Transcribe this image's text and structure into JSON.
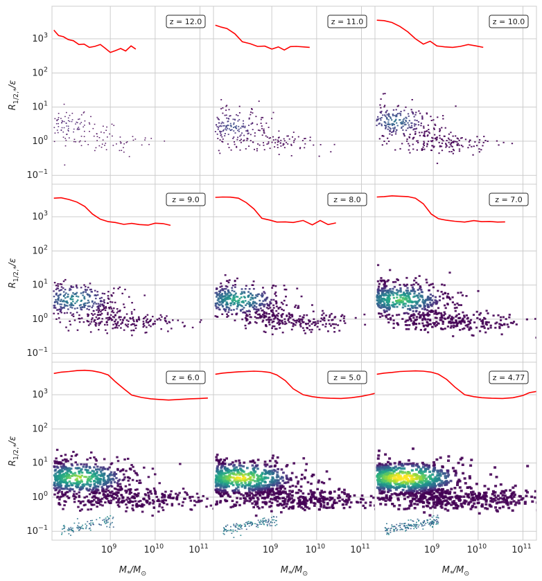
{
  "figure": {
    "ylabel": "R_{1/2,*}/ε",
    "xlabel": "M_*/M_⊙",
    "rows": 3,
    "cols": 3
  },
  "chart_data": {
    "type": "scatter",
    "subtype": "hexbin-density-with-median-line",
    "x_scale": "log",
    "y_scale": "log",
    "xlim": [
      50000000,
      200000000000
    ],
    "ylim": [
      0.055,
      9000
    ],
    "x_ticks": [
      {
        "value": 1000000000,
        "base": "10",
        "exp": "9"
      },
      {
        "value": 10000000000,
        "base": "10",
        "exp": "10"
      },
      {
        "value": 100000000000,
        "base": "10",
        "exp": "11"
      }
    ],
    "y_ticks": [
      {
        "value": 0.1,
        "base": "10",
        "exp": "−1"
      },
      {
        "value": 1,
        "base": "10",
        "exp": "0"
      },
      {
        "value": 10,
        "base": "10",
        "exp": "1"
      },
      {
        "value": 100,
        "base": "10",
        "exp": "2"
      },
      {
        "value": 1000,
        "base": "10",
        "exp": "3"
      }
    ],
    "grid": true,
    "line_color": "#ff0000",
    "colormap": "viridis",
    "panels": [
      {
        "z_label": "z = 12.0",
        "z": 12.0,
        "density": 1,
        "median": {
          "x": [
            55000000,
            70000000,
            90000000,
            115000000,
            150000000,
            200000000,
            260000000,
            340000000,
            450000000,
            600000000,
            780000000,
            1000000000,
            1300000000,
            1700000000,
            2200000000,
            2900000000,
            3700000000
          ],
          "y": [
            1800,
            1250,
            1150,
            950,
            880,
            680,
            700,
            560,
            600,
            680,
            520,
            400,
            450,
            520,
            440,
            620,
            500
          ]
        }
      },
      {
        "z_label": "z = 11.0",
        "z": 11.0,
        "density": 2,
        "median": {
          "x": [
            55000000,
            75000000,
            100000000,
            150000000,
            220000000,
            330000000,
            480000000,
            700000000,
            1000000000,
            1400000000,
            1900000000,
            2600000000,
            3500000000,
            5000000000,
            7000000000
          ],
          "y": [
            2500,
            2200,
            2000,
            1400,
            820,
            720,
            600,
            610,
            500,
            580,
            470,
            590,
            600,
            580,
            560
          ]
        }
      },
      {
        "z_label": "z = 10.0",
        "z": 10.0,
        "density": 3,
        "median": {
          "x": [
            55000000,
            80000000,
            120000000,
            180000000,
            270000000,
            400000000,
            600000000,
            850000000,
            1200000000,
            1800000000,
            2700000000,
            4000000000,
            6000000000,
            9000000000,
            13000000000
          ],
          "y": [
            3500,
            3400,
            3000,
            2300,
            1600,
            1000,
            700,
            850,
            620,
            580,
            560,
            600,
            680,
            620,
            560
          ]
        }
      },
      {
        "z_label": "z = 9.0",
        "z": 9.0,
        "density": 4,
        "median": {
          "x": [
            55000000,
            80000000,
            120000000,
            180000000,
            270000000,
            400000000,
            600000000,
            900000000,
            1300000000,
            2000000000,
            3000000000,
            4500000000,
            7000000000,
            10000000000,
            15000000000,
            22000000000
          ],
          "y": [
            3500,
            3600,
            3200,
            2700,
            2000,
            1200,
            850,
            720,
            680,
            600,
            640,
            590,
            570,
            650,
            630,
            560
          ]
        }
      },
      {
        "z_label": "z = 8.0",
        "z": 8.0,
        "density": 5,
        "median": {
          "x": [
            55000000,
            80000000,
            120000000,
            180000000,
            270000000,
            400000000,
            600000000,
            900000000,
            1300000000,
            2000000000,
            3000000000,
            5000000000,
            8000000000,
            12000000000,
            18000000000,
            27000000000
          ],
          "y": [
            3700,
            3800,
            3750,
            3500,
            2600,
            1700,
            900,
            800,
            700,
            710,
            680,
            780,
            580,
            780,
            590,
            660
          ]
        }
      },
      {
        "z_label": "z = 7.0",
        "z": 7.0,
        "density": 6,
        "median": {
          "x": [
            55000000,
            80000000,
            120000000,
            180000000,
            270000000,
            400000000,
            600000000,
            900000000,
            1300000000,
            2000000000,
            3000000000,
            5000000000,
            8000000000,
            12000000000,
            18000000000,
            27000000000,
            40000000000
          ],
          "y": [
            3800,
            3900,
            4100,
            4000,
            3900,
            3500,
            2400,
            1200,
            880,
            790,
            740,
            700,
            770,
            720,
            730,
            700,
            710
          ]
        }
      },
      {
        "z_label": "z = 6.0",
        "z": 6.0,
        "density": 7,
        "median": {
          "x": [
            55000000,
            80000000,
            120000000,
            180000000,
            270000000,
            400000000,
            600000000,
            900000000,
            1300000000,
            2000000000,
            3000000000,
            5000000000,
            8000000000,
            12000000000,
            20000000000,
            35000000000,
            60000000000,
            100000000000,
            150000000000
          ],
          "y": [
            4200,
            4600,
            4800,
            5100,
            5200,
            5000,
            4500,
            3800,
            2400,
            1500,
            980,
            830,
            760,
            730,
            700,
            730,
            760,
            780,
            800
          ]
        }
      },
      {
        "z_label": "z = 5.0",
        "z": 5.0,
        "density": 8,
        "median": {
          "x": [
            55000000,
            80000000,
            120000000,
            180000000,
            270000000,
            400000000,
            600000000,
            900000000,
            1300000000,
            2000000000,
            3000000000,
            5000000000,
            8000000000,
            12000000000,
            20000000000,
            35000000000,
            60000000000,
            100000000000,
            150000000000,
            200000000000
          ],
          "y": [
            4000,
            4300,
            4500,
            4700,
            4800,
            4900,
            4800,
            4500,
            3800,
            2600,
            1500,
            1000,
            880,
            820,
            790,
            780,
            820,
            900,
            1000,
            1100
          ]
        }
      },
      {
        "z_label": "z = 4.77",
        "z": 4.77,
        "density": 9,
        "median": {
          "x": [
            55000000,
            80000000,
            120000000,
            180000000,
            270000000,
            400000000,
            600000000,
            900000000,
            1300000000,
            2000000000,
            3000000000,
            5000000000,
            8000000000,
            12000000000,
            20000000000,
            35000000000,
            60000000000,
            100000000000,
            140000000000,
            200000000000
          ],
          "y": [
            4000,
            4300,
            4500,
            4800,
            4900,
            5000,
            4900,
            4600,
            4000,
            2800,
            1700,
            1000,
            880,
            820,
            790,
            780,
            820,
            950,
            1150,
            1250
          ]
        }
      }
    ]
  }
}
